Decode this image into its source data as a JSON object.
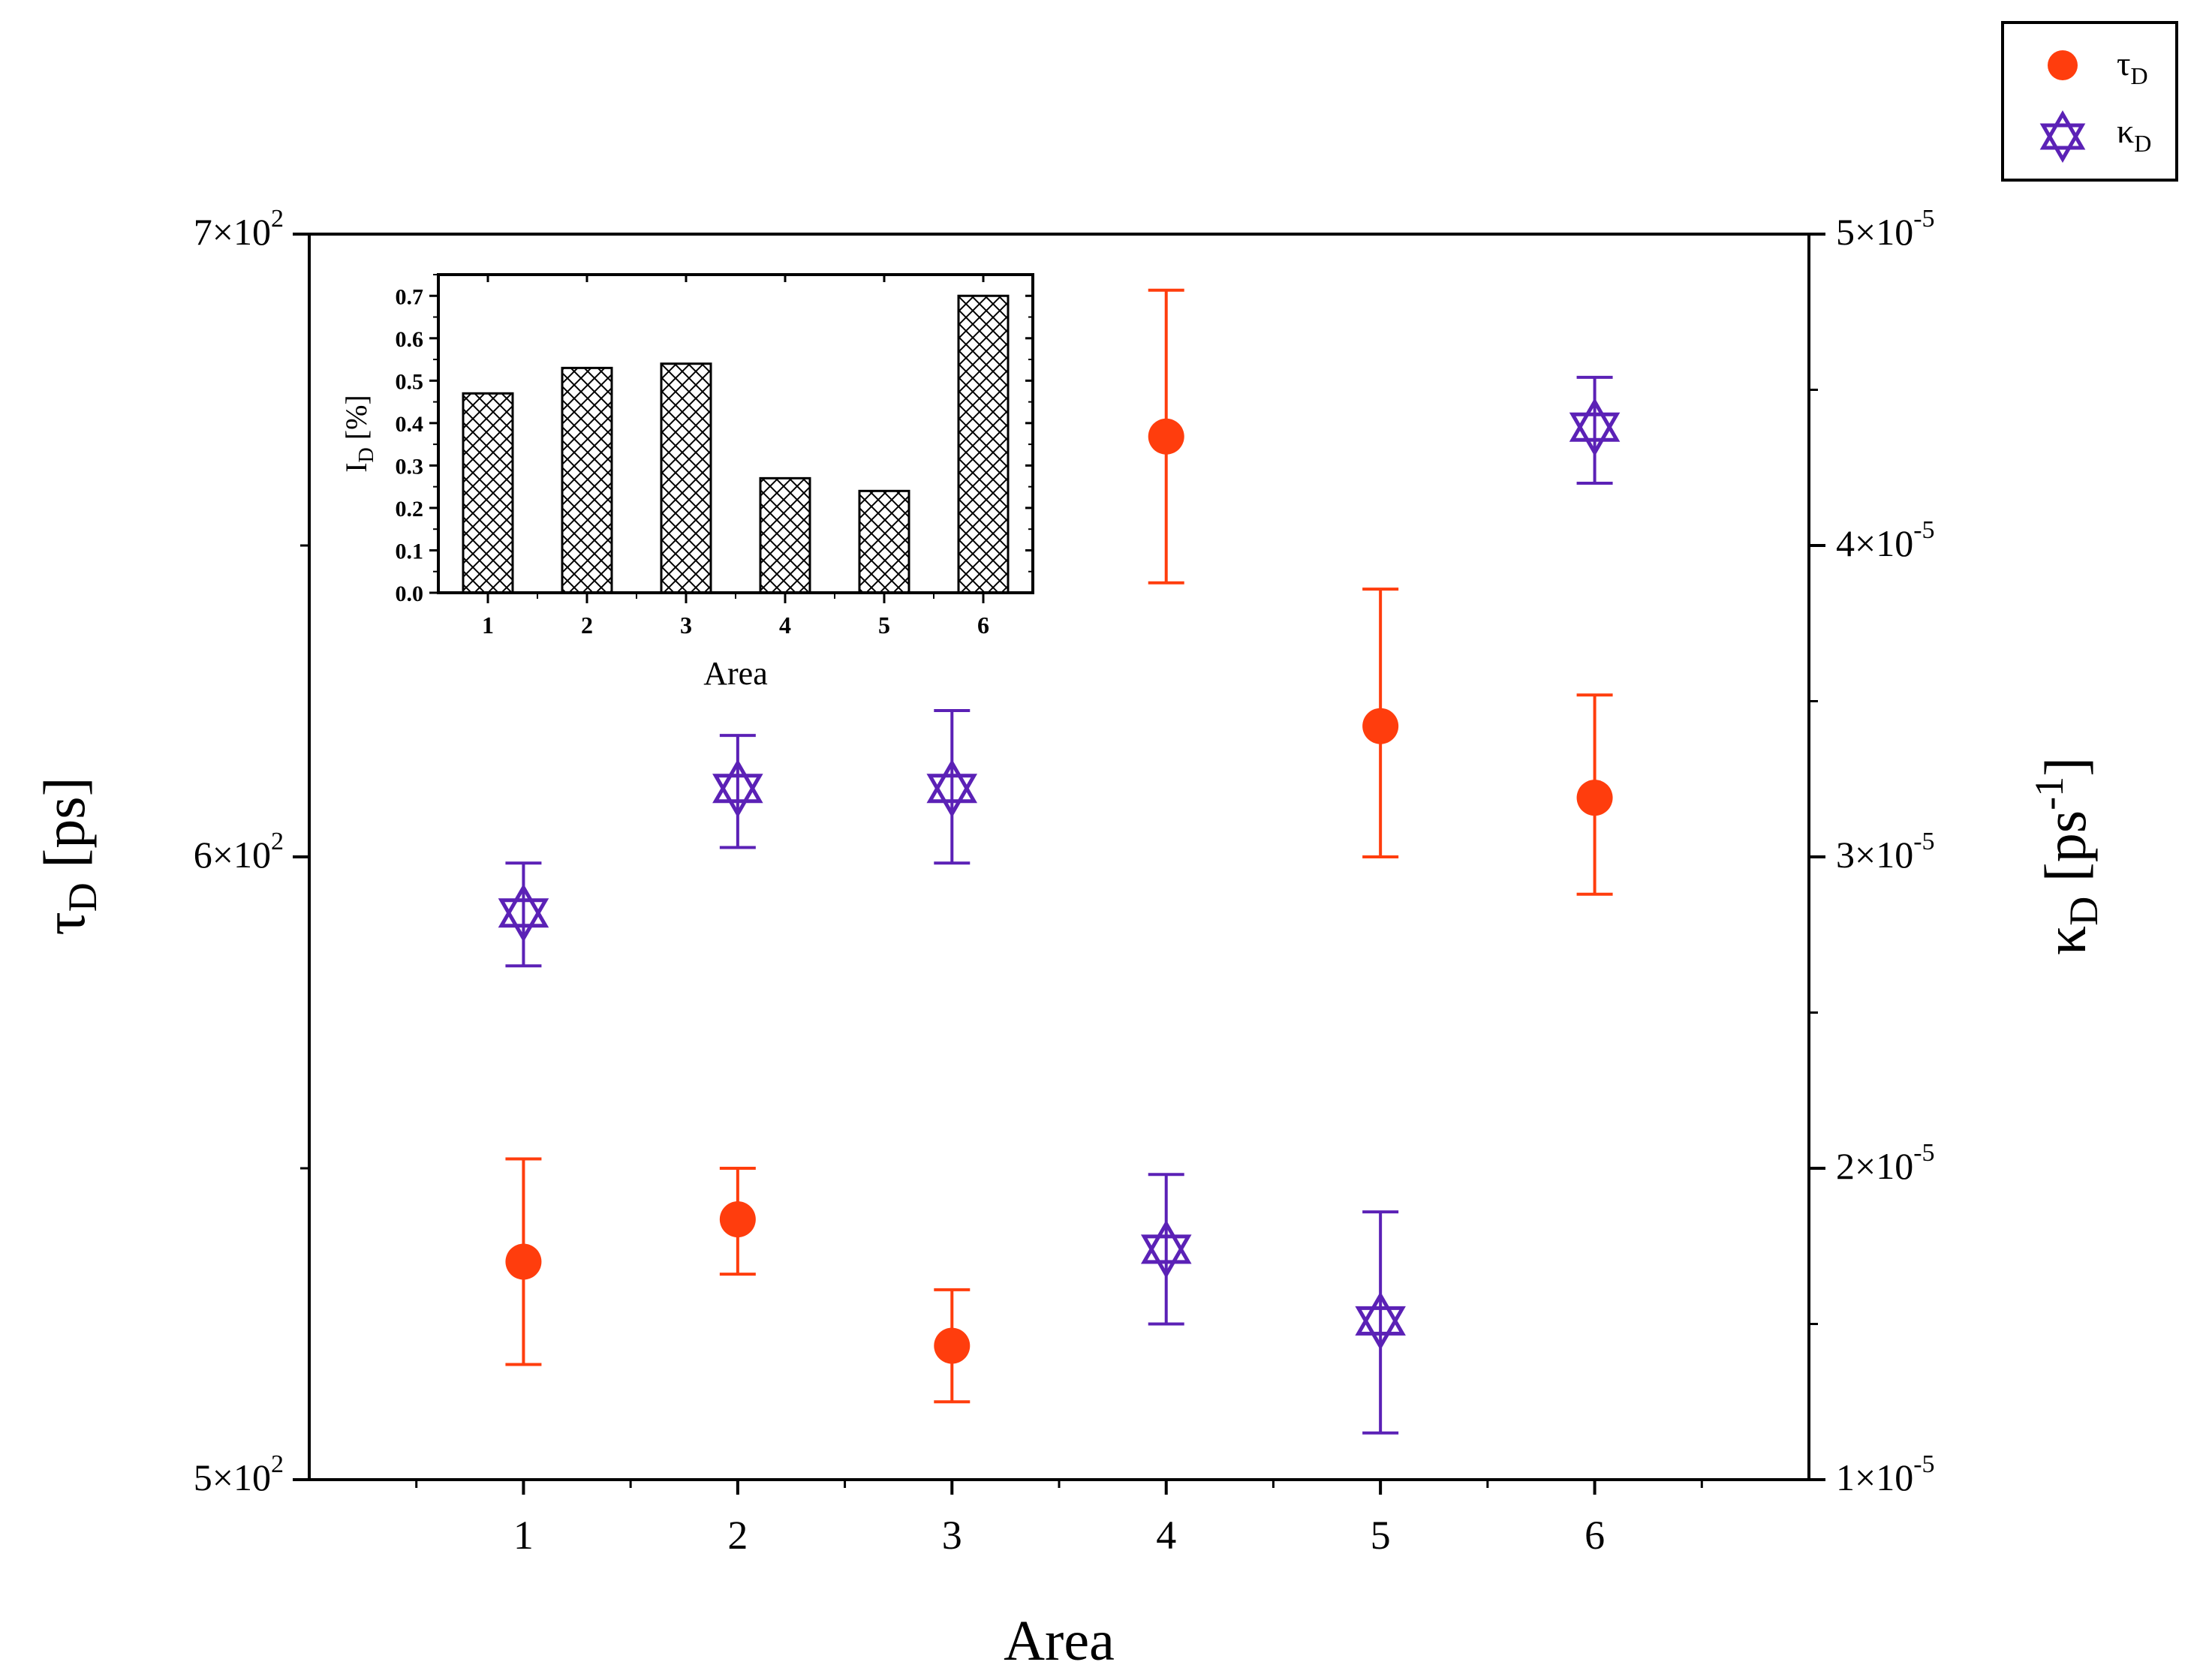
{
  "chart_data": [
    {
      "type": "scatter",
      "x_axis": {
        "label": "Area",
        "ticks": [
          "1",
          "2",
          "3",
          "4",
          "5",
          "6"
        ],
        "range": [
          0,
          7
        ]
      },
      "y_left": {
        "label_main": "τ",
        "label_sub": "D",
        "label_rest": " [ps]",
        "range": [
          500,
          700
        ],
        "ticks": [
          {
            "value": 500,
            "mantissa": "5×10",
            "exp": "2"
          },
          {
            "value": 600,
            "mantissa": "6×10",
            "exp": "2"
          },
          {
            "value": 700,
            "mantissa": "7×10",
            "exp": "2"
          }
        ]
      },
      "y_right": {
        "label_main": "κ",
        "label_sub": "D",
        "label_rest": " [ps",
        "label_sup": "-1",
        "label_close": "]",
        "range": [
          1e-05,
          5e-05
        ],
        "ticks": [
          {
            "value": 1e-05,
            "mantissa": "1×10",
            "exp": "-5"
          },
          {
            "value": 2e-05,
            "mantissa": "2×10",
            "exp": "-5"
          },
          {
            "value": 3e-05,
            "mantissa": "3×10",
            "exp": "-5"
          },
          {
            "value": 4e-05,
            "mantissa": "4×10",
            "exp": "-5"
          },
          {
            "value": 5e-05,
            "mantissa": "5×10",
            "exp": "-5"
          }
        ]
      },
      "series": [
        {
          "name": "τ",
          "name_sub": "D",
          "axis": "left",
          "marker": "circle",
          "color": "#FF3D0D",
          "x": [
            1,
            2,
            3,
            4,
            5,
            6
          ],
          "y": [
            535,
            541.8,
            521.5,
            667.5,
            621,
            609.5
          ],
          "y_low": [
            518.5,
            533,
            512.5,
            644,
            600,
            594
          ],
          "y_high": [
            551.5,
            550,
            530.5,
            691,
            643,
            626
          ]
        },
        {
          "name": "κ",
          "name_sub": "D",
          "axis": "right",
          "marker": "hexagram",
          "color": "#5B21B6",
          "x": [
            1,
            2,
            3,
            4,
            5,
            6
          ],
          "y": [
            2.82e-05,
            3.22e-05,
            3.22e-05,
            1.74e-05,
            1.51e-05,
            4.38e-05
          ],
          "y_low": [
            2.65e-05,
            3.03e-05,
            2.98e-05,
            1.5e-05,
            1.15e-05,
            4.2e-05
          ],
          "y_high": [
            2.98e-05,
            3.39e-05,
            3.47e-05,
            1.98e-05,
            1.86e-05,
            4.54e-05
          ]
        }
      ],
      "legend": {
        "position": "top-right, outside plot"
      }
    },
    {
      "type": "bar",
      "role": "inset",
      "categories": [
        "1",
        "2",
        "3",
        "4",
        "5",
        "6"
      ],
      "values": [
        0.47,
        0.53,
        0.54,
        0.27,
        0.24,
        0.7
      ],
      "xlabel": "Area",
      "ylabel_main": "I",
      "ylabel_sub": "D",
      "ylabel_rest": " [%]",
      "ylim": [
        0,
        0.75
      ],
      "yticks": [
        "0.0",
        "0.1",
        "0.2",
        "0.3",
        "0.4",
        "0.5",
        "0.6",
        "0.7"
      ],
      "pattern": "crosshatch"
    }
  ]
}
